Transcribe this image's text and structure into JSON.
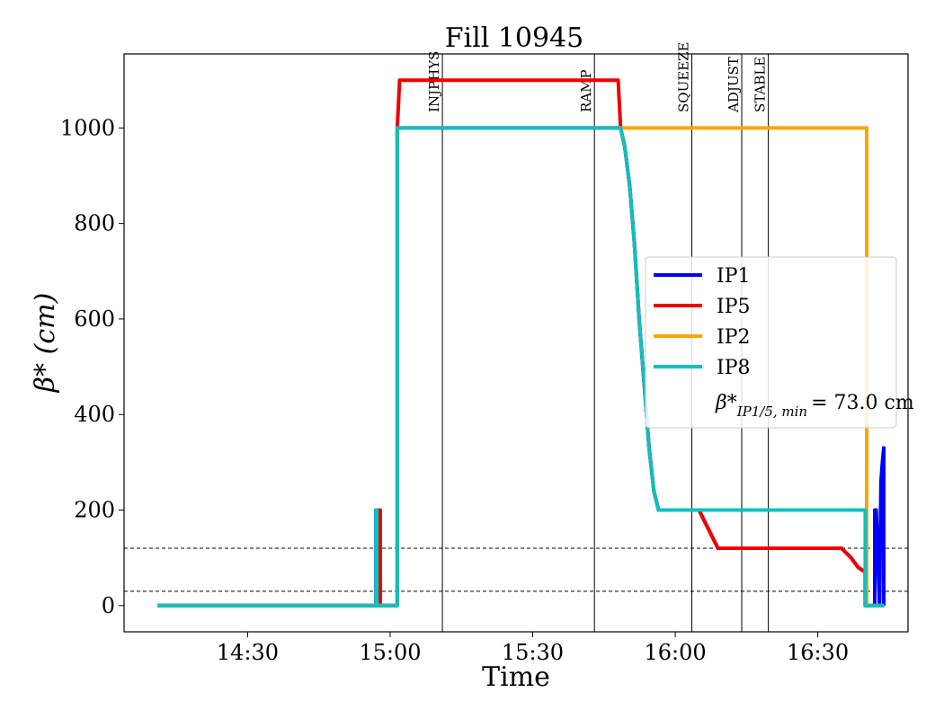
{
  "chart_data": {
    "type": "line",
    "title": "Fill 10945",
    "xlabel": "Time",
    "ylabel": "β* (cm)",
    "xticks": [
      {
        "t": 870,
        "label": "14:30"
      },
      {
        "t": 900,
        "label": "15:00"
      },
      {
        "t": 930,
        "label": "15:30"
      },
      {
        "t": 960,
        "label": "16:00"
      },
      {
        "t": 990,
        "label": "16:30"
      }
    ],
    "yticks": [
      0,
      200,
      400,
      600,
      800,
      1000
    ],
    "xlim": [
      844,
      1009
    ],
    "ylim": [
      -55,
      1155
    ],
    "grid": false,
    "legend_position": "center-right",
    "legend_note_math": "β*",
    "legend_note_sub": "IP1/5, min",
    "legend_note_value": "= 73.0 cm",
    "phase_markers": [
      {
        "t": 911,
        "label": "INJPHYS"
      },
      {
        "t": 943,
        "label": "RAMP"
      },
      {
        "t": 963.5,
        "label": "SQUEEZE"
      },
      {
        "t": 974,
        "label": "ADJUST"
      },
      {
        "t": 979.6,
        "label": "STABLE"
      }
    ],
    "reference_lines": [
      {
        "y": 30,
        "style": "dashed"
      },
      {
        "y": 120,
        "style": "dashed"
      }
    ],
    "series": [
      {
        "name": "IP1",
        "color": "#0000ff",
        "x": [
          851,
          897,
          897,
          897.2,
          897.2,
          901.5,
          901.5,
          948.5,
          949.4,
          950.4,
          951.4,
          952.4,
          953.5,
          954.5,
          955.5,
          956.5,
          958.6,
          965,
          967,
          969,
          974,
          980,
          985,
          990,
          995,
          997,
          998.5,
          1000,
          1000,
          1002,
          1002,
          1002.3,
          1003,
          1003.3,
          1003.6,
          1003.9,
          1003.9,
          1004
        ],
        "y": [
          0,
          0,
          200,
          200,
          0,
          0,
          1000,
          1000,
          960,
          880,
          760,
          600,
          460,
          330,
          240,
          200,
          200,
          200,
          160,
          120,
          120,
          120,
          120,
          120,
          120,
          100,
          80,
          70,
          0,
          0,
          200,
          200,
          0,
          260,
          300,
          330,
          0,
          0
        ]
      },
      {
        "name": "IP5",
        "color": "#ee0000",
        "x": [
          851,
          897.7,
          897.7,
          897.9,
          897.9,
          901.5,
          901.5,
          902,
          948,
          948.5,
          949.4,
          950.4,
          951.4,
          952.4,
          953.5,
          954.5,
          955.5,
          956.5,
          958.6,
          965,
          967,
          969,
          974,
          980,
          985,
          990,
          995,
          997,
          998.5,
          1000,
          1000,
          1004
        ],
        "y": [
          0,
          0,
          200,
          200,
          0,
          0,
          1000,
          1100,
          1100,
          1000,
          960,
          880,
          760,
          600,
          460,
          330,
          240,
          200,
          200,
          200,
          160,
          120,
          120,
          120,
          120,
          120,
          120,
          100,
          80,
          70,
          0,
          0
        ]
      },
      {
        "name": "IP2",
        "color": "#ffa500",
        "x": [
          851,
          901.5,
          901.5,
          1000.3,
          1000.3,
          1004
        ],
        "y": [
          0,
          0,
          1000,
          1000,
          0,
          0
        ]
      },
      {
        "name": "IP8",
        "color": "#10bfbf",
        "x": [
          851,
          897,
          897,
          897.2,
          897.2,
          901.5,
          901.5,
          948.5,
          949.4,
          950.4,
          951.4,
          952.4,
          953.5,
          954.5,
          955.5,
          956.5,
          958.6,
          1000,
          1000,
          1004
        ],
        "y": [
          0,
          0,
          200,
          200,
          0,
          0,
          1000,
          1000,
          960,
          880,
          760,
          600,
          460,
          330,
          240,
          200,
          200,
          200,
          0,
          0
        ]
      }
    ]
  }
}
